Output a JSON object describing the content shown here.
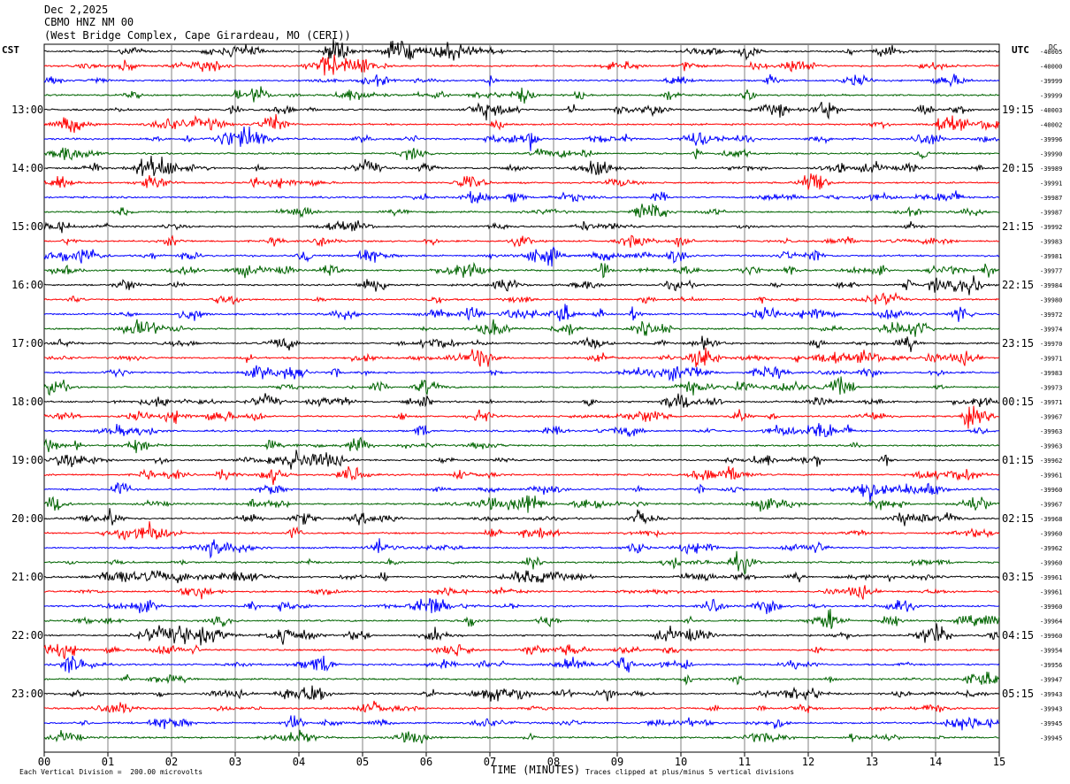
{
  "header": {
    "date": "Dec 2,2025",
    "station": "CBMO HNZ NM 00",
    "location": "(West Bridge Complex, Cape Girardeau, MO (CERI))"
  },
  "labels": {
    "left_tz": "CST",
    "right_tz": "UTC",
    "dc": "DC"
  },
  "footer": {
    "scale": "Each Vertical Division =  200.00 microvolts",
    "clip": "Traces clipped at plus/minus 5 vertical divisions"
  },
  "colors": {
    "trace_cycle": [
      "#000000",
      "#ff0000",
      "#0000ff",
      "#006400"
    ],
    "grid": "#808080"
  },
  "chart_data": {
    "type": "line",
    "xlabel": "TIME (MINUTES)",
    "xlim": [
      0,
      15
    ],
    "x_ticks": [
      "00",
      "01",
      "02",
      "03",
      "04",
      "05",
      "06",
      "07",
      "08",
      "09",
      "10",
      "11",
      "12",
      "13",
      "14",
      "15"
    ],
    "left_hour_labels": [
      "13:00",
      "14:00",
      "15:00",
      "16:00",
      "17:00",
      "18:00",
      "19:00",
      "20:00",
      "21:00",
      "22:00",
      "23:00"
    ],
    "right_hour_labels": [
      "19:15",
      "20:15",
      "21:15",
      "22:15",
      "23:15",
      "00:15",
      "01:15",
      "02:15",
      "03:15",
      "04:15",
      "05:15"
    ],
    "trace_count": 48,
    "traces_per_hour": 4,
    "dc_offsets": [
      -40005,
      -40000,
      -39999,
      -39999,
      -40003,
      -40002,
      -39996,
      -39990,
      -39989,
      -39991,
      -39987,
      -39987,
      -39992,
      -39983,
      -39981,
      -39977,
      -39984,
      -39980,
      -39972,
      -39974,
      -39970,
      -39971,
      -39983,
      -39973,
      -39971,
      -39967,
      -39963,
      -39963,
      -39962,
      -39961,
      -39960,
      -39967,
      -39968,
      -39960,
      -39962,
      -39960,
      -39961,
      -39961,
      -39960,
      -39964,
      -39960,
      -39954,
      -39956,
      -39947,
      -39943,
      -39943,
      -39945,
      -39945
    ]
  }
}
